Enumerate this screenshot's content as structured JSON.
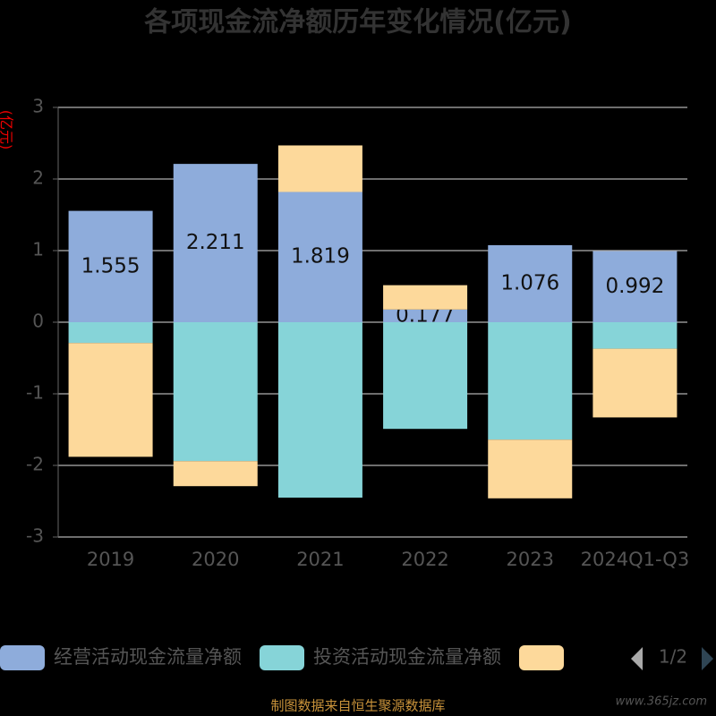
{
  "chart_data": {
    "type": "bar",
    "stacked": true,
    "title": "各项现金流净额历年变化情况(亿元)",
    "y_label": "(亿元)",
    "categories": [
      "2019",
      "2020",
      "2021",
      "2022",
      "2023",
      "2024Q1-Q3"
    ],
    "ylim": [
      -3,
      3
    ],
    "yticks": [
      -3,
      -2,
      -1,
      0,
      1,
      2,
      3
    ],
    "grid": true,
    "series": [
      {
        "name": "经营活动现金流量净额",
        "color": "#8eacdb",
        "values": [
          1.555,
          2.211,
          1.819,
          0.177,
          1.076,
          0.992
        ],
        "show_labels": true
      },
      {
        "name": "投资活动现金流量净额",
        "color": "#86d4d8",
        "values": [
          -0.29,
          -1.94,
          -2.45,
          -1.49,
          -1.64,
          -0.37
        ]
      },
      {
        "color": "#fdd99b",
        "values": [
          -1.59,
          -0.35,
          0.65,
          0.34,
          -0.82,
          -0.96
        ]
      }
    ],
    "legend_page": "1/2",
    "source": "制图数据来自恒生聚源数据库",
    "watermark": "www.365jz.com"
  }
}
